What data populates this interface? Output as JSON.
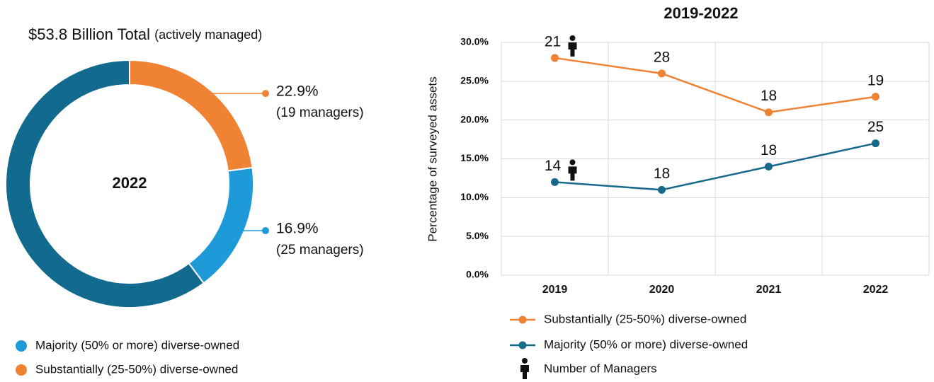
{
  "chart_data": [
    {
      "type": "pie",
      "donut": true,
      "title": "$53.8 Billion Total",
      "subtitle": "(actively managed)",
      "center_label": "2022",
      "categories": [
        "Substantially (25-50%) diverse-owned",
        "Majority (50% or more) diverse-owned",
        null
      ],
      "values": [
        22.9,
        16.9,
        60.2
      ],
      "value_labels": [
        "22.9%",
        "16.9%",
        null
      ],
      "annotations": [
        "(19 managers)",
        "(25 managers)",
        null
      ],
      "colors": [
        "#ef8233",
        "#1f9ad9",
        "#136a8f"
      ]
    },
    {
      "type": "line",
      "title": "2019-2022",
      "y_label": "Percentage of surveyed assets",
      "categories": [
        "2019",
        "2020",
        "2021",
        "2022"
      ],
      "series": [
        {
          "name": "Substantially (25-50%) diverse-owned",
          "color": "#ef8233",
          "values": [
            28,
            26,
            21,
            23
          ],
          "managers": [
            21,
            28,
            18,
            19
          ]
        },
        {
          "name": "Majority (50% or more) diverse-owned",
          "color": "#17698c",
          "values": [
            12,
            11,
            14,
            17
          ],
          "managers": [
            14,
            18,
            18,
            25
          ]
        }
      ],
      "legend_extra": "Number of Managers",
      "ylim": [
        0,
        30
      ],
      "yticks": [
        {
          "value": 0,
          "label": "0.0%"
        },
        {
          "value": 5,
          "label": "5.0%"
        },
        {
          "value": 10,
          "label": "10.0%"
        },
        {
          "value": 15,
          "label": "15.0%"
        },
        {
          "value": 20,
          "label": "20.0%"
        },
        {
          "value": 25,
          "label": "25.0%"
        },
        {
          "value": 30,
          "label": "30.0%"
        }
      ],
      "grid": true
    }
  ]
}
